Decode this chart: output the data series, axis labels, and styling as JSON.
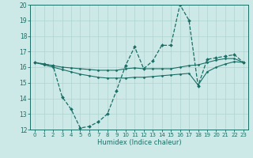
{
  "xlabel": "Humidex (Indice chaleur)",
  "bg_color": "#cce9e7",
  "grid_color": "#aed4d0",
  "line_color": "#1a6e65",
  "x": [
    0,
    1,
    2,
    3,
    4,
    5,
    6,
    7,
    8,
    9,
    10,
    11,
    12,
    13,
    14,
    15,
    16,
    17,
    18,
    19,
    20,
    21,
    22,
    23
  ],
  "line_main": [
    16.3,
    16.2,
    16.1,
    14.1,
    13.3,
    12.1,
    12.2,
    12.5,
    13.0,
    14.5,
    16.1,
    17.3,
    15.9,
    16.4,
    17.4,
    17.4,
    20.0,
    19.0,
    14.8,
    16.5,
    16.6,
    16.7,
    16.8,
    16.3
  ],
  "line_upper": [
    16.3,
    16.2,
    16.1,
    16.0,
    15.95,
    15.9,
    15.85,
    15.8,
    15.8,
    15.8,
    15.9,
    15.95,
    15.9,
    15.9,
    15.9,
    15.9,
    16.0,
    16.1,
    16.15,
    16.3,
    16.45,
    16.55,
    16.55,
    16.3
  ],
  "line_lower": [
    16.3,
    16.15,
    16.0,
    15.85,
    15.7,
    15.55,
    15.45,
    15.35,
    15.3,
    15.3,
    15.3,
    15.35,
    15.35,
    15.4,
    15.45,
    15.5,
    15.55,
    15.6,
    14.85,
    15.7,
    16.0,
    16.2,
    16.35,
    16.3
  ],
  "ylim": [
    12,
    20
  ],
  "yticks": [
    12,
    13,
    14,
    15,
    16,
    17,
    18,
    19,
    20
  ],
  "xticks": [
    0,
    1,
    2,
    3,
    4,
    5,
    6,
    7,
    8,
    9,
    10,
    11,
    12,
    13,
    14,
    15,
    16,
    17,
    18,
    19,
    20,
    21,
    22,
    23
  ]
}
